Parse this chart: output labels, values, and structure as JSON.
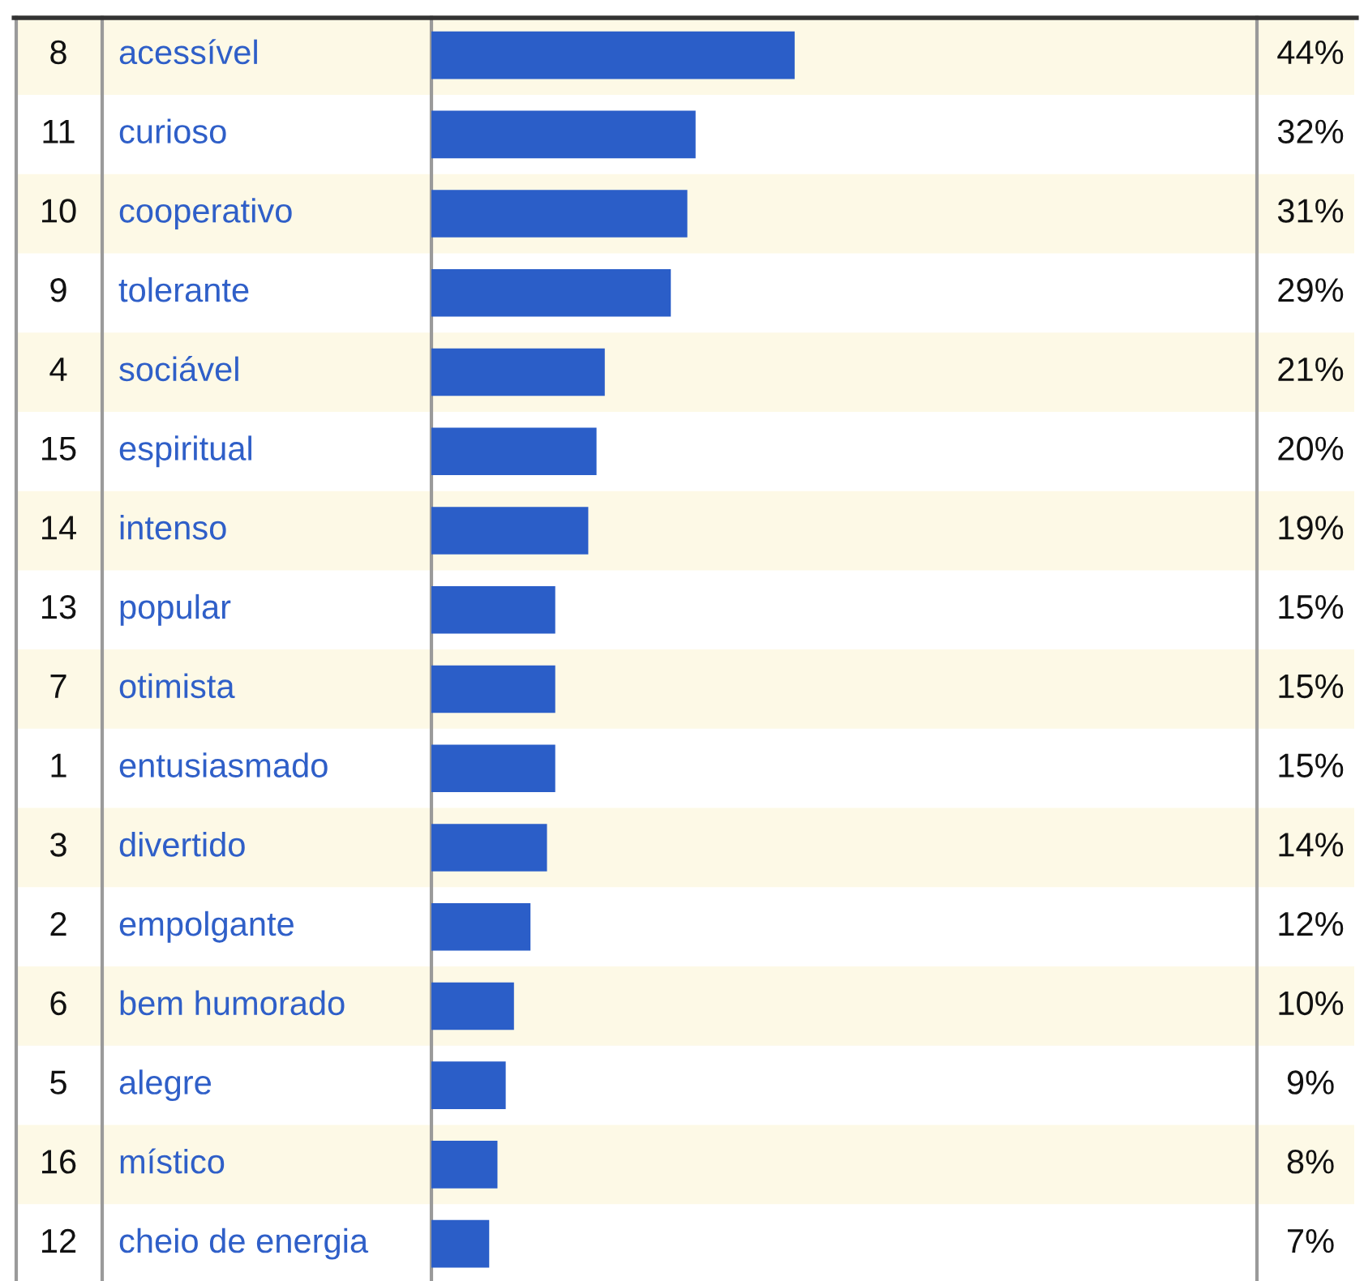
{
  "chart_data": {
    "type": "bar",
    "orientation": "horizontal",
    "categories": [
      "acessível",
      "curioso",
      "cooperativo",
      "tolerante",
      "sociável",
      "espiritual",
      "intenso",
      "popular",
      "otimista",
      "entusiasmado",
      "divertido",
      "empolgante",
      "bem humorado",
      "alegre",
      "místico",
      "cheio de energia"
    ],
    "values": [
      44,
      32,
      31,
      29,
      21,
      20,
      19,
      15,
      15,
      15,
      14,
      12,
      10,
      9,
      8,
      7
    ],
    "value_labels": [
      "44%",
      "32%",
      "31%",
      "29%",
      "21%",
      "20%",
      "19%",
      "15%",
      "15%",
      "15%",
      "14%",
      "12%",
      "10%",
      "9%",
      "8%",
      "7%"
    ],
    "annotations": [
      "8",
      "11",
      "10",
      "9",
      "4",
      "15",
      "14",
      "13",
      "7",
      "1",
      "3",
      "2",
      "6",
      "5",
      "16",
      "12"
    ],
    "color": "#2b5ec8",
    "xlim": [
      0,
      100
    ]
  }
}
